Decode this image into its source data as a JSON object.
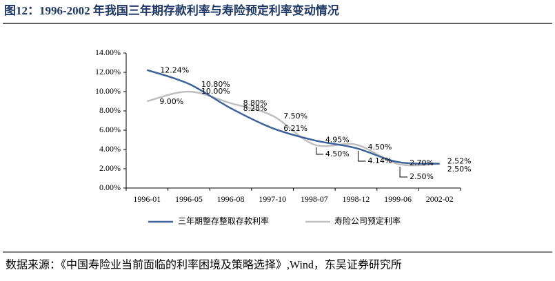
{
  "title": "图12：1996-2002 年我国三年期存款利率与寿险预定利率变动情况",
  "source": "数据来源：《中国寿险业当前面临的利率困境及策略选择》,Wind，东吴证券研究所",
  "chart_data": {
    "type": "line",
    "categories": [
      "1996-01",
      "1996-05",
      "1996-08",
      "1997-10",
      "1998-07",
      "1998-12",
      "1999-06",
      "2002-02"
    ],
    "series": [
      {
        "name": "三年期整存整取存款利率",
        "color": "#3c6198",
        "values": [
          12.24,
          10.8,
          8.28,
          6.21,
          4.95,
          4.14,
          2.7,
          2.52
        ],
        "value_labels": [
          "12.24%",
          "10.80%",
          "8.28%",
          "6.21%",
          "4.95%",
          "4.14%",
          "2.70%",
          "2.52%"
        ]
      },
      {
        "name": "寿险公司预定利率",
        "color": "#bfbfbf",
        "values": [
          9.0,
          10.0,
          8.8,
          7.5,
          4.5,
          4.5,
          2.5,
          2.5
        ],
        "value_labels": [
          "9.00%",
          "10.00%",
          "8.80%",
          "7.50%",
          "4.50%",
          "4.50%",
          "2.50%",
          "2.50%"
        ]
      }
    ],
    "ylim": [
      0,
      14
    ],
    "yticks": [
      {
        "value": 0,
        "label": "0.00%"
      },
      {
        "value": 2,
        "label": "2.00%"
      },
      {
        "value": 4,
        "label": "4.00%"
      },
      {
        "value": 6,
        "label": "6.00%"
      },
      {
        "value": 8,
        "label": "8.00%"
      },
      {
        "value": 10,
        "label": "10.00%"
      },
      {
        "value": 12,
        "label": "12.00%"
      },
      {
        "value": 14,
        "label": "14.00%"
      }
    ],
    "legend": "bottom"
  }
}
